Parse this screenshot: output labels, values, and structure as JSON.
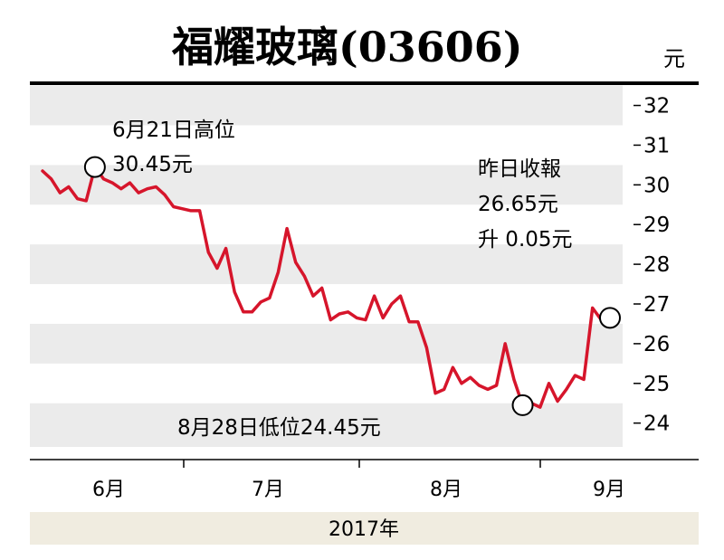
{
  "chart_data": {
    "type": "line",
    "title": "福耀玻璃(03606)",
    "unit": "元",
    "ylim": [
      23.6,
      32.2
    ],
    "yticks": [
      24,
      25,
      26,
      27,
      28,
      29,
      30,
      31,
      32
    ],
    "ytick_labels": [
      "24",
      "25",
      "26",
      "27",
      "28",
      "29",
      "30",
      "31",
      "32"
    ],
    "grid": "alternating horizontal bands",
    "x_month_labels": [
      "6月",
      "7月",
      "8月",
      "9月"
    ],
    "xlabel": "2017年",
    "colors": {
      "line": "#d6152b",
      "band": "#ebebeb",
      "footer": "#f0ece0"
    },
    "series": [
      {
        "values": [
          30.35,
          30.15,
          29.8,
          29.95,
          29.65,
          29.6,
          30.45,
          30.15,
          30.05,
          29.9,
          30.05,
          29.8,
          29.9,
          29.95,
          29.75,
          29.45,
          29.4,
          29.35,
          29.35,
          28.3,
          27.9,
          28.4,
          27.3,
          26.8,
          26.8,
          27.05,
          27.15,
          27.8,
          28.9,
          28.05,
          27.7,
          27.2,
          27.4,
          26.6,
          26.75,
          26.8,
          26.65,
          26.6,
          27.2,
          26.65,
          27.0,
          27.2,
          26.55,
          26.55,
          25.9,
          24.75,
          24.85,
          25.4,
          25.0,
          25.15,
          24.95,
          24.85,
          24.95,
          26.0,
          25.1,
          24.45,
          24.5,
          24.4,
          25.0,
          24.55,
          24.85,
          25.2,
          25.1,
          26.9,
          26.6,
          26.65
        ]
      }
    ],
    "annotations": [
      {
        "lines": [
          "6月21日高位",
          "30.45元"
        ],
        "value": 30.45,
        "index": 6
      },
      {
        "lines": [
          "8月28日低位24.45元"
        ],
        "value": 24.45,
        "index": 55
      },
      {
        "lines": [
          "昨日收報",
          "26.65元",
          "升 0.05元"
        ],
        "value": 26.65,
        "index": 65
      }
    ]
  }
}
